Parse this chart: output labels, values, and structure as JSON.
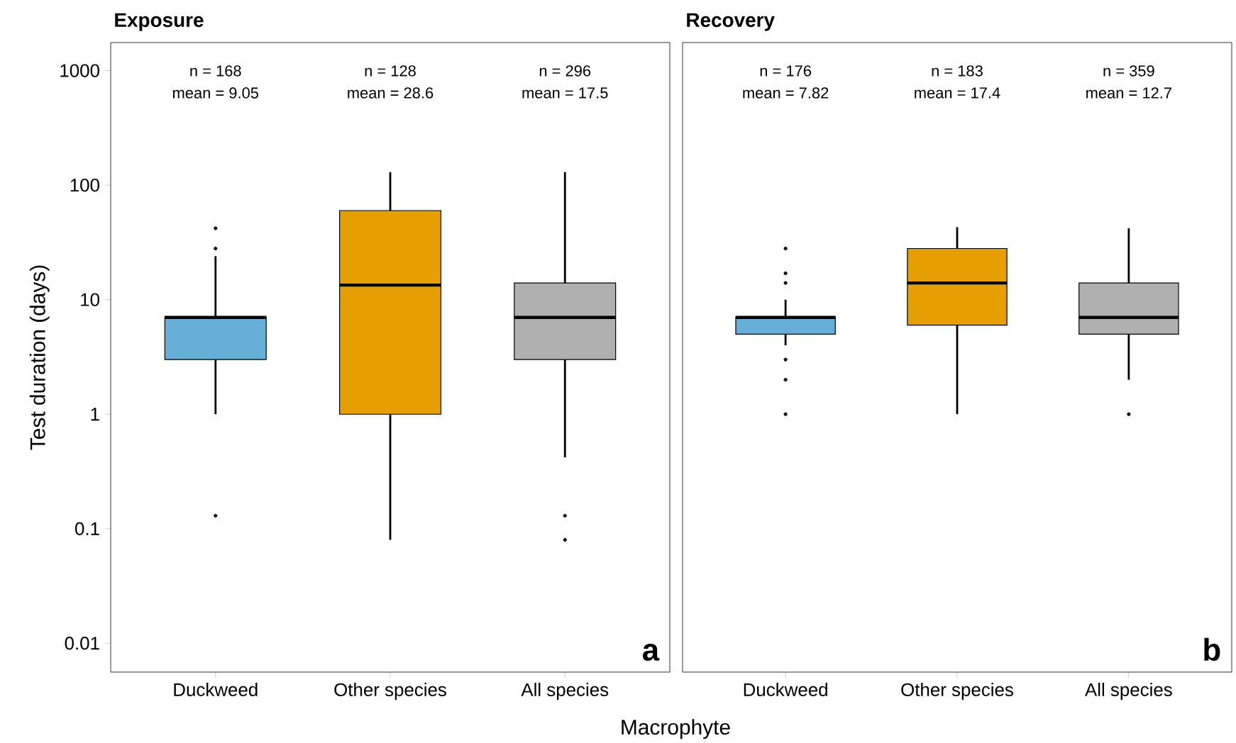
{
  "chart_data": [
    {
      "type": "box",
      "title": "Exposure",
      "ylabel": "Test duration (days)",
      "xlabel": "Macrophyte",
      "log": true,
      "categories": [
        "Duckweed",
        "Other species",
        "All species"
      ],
      "boxes": [
        {
          "low": 1,
          "q1": 3,
          "median": 7,
          "q3": 7.1,
          "high": 24,
          "outliers": [
            42,
            28,
            0.13
          ]
        },
        {
          "low": 0.08,
          "q1": 1,
          "median": 13.4,
          "q3": 60,
          "high": 130
        },
        {
          "low": 0.42,
          "q1": 3,
          "median": 7,
          "q3": 14,
          "high": 130,
          "outliers": [
            0.13,
            0.08
          ]
        }
      ],
      "colors": [
        "#67aed9",
        "#e69f00",
        "#b0b0b0"
      ],
      "ylim": [
        0.0056,
        1760
      ],
      "yticks": [
        0.01,
        0.1,
        1,
        10,
        100,
        1000
      ],
      "annotations": [
        "n = 168",
        "mean = 9.05",
        "n = 128",
        "mean = 28.6",
        "n = 296",
        "mean = 17.5",
        "a"
      ]
    },
    {
      "type": "box",
      "title": "Recovery",
      "log": true,
      "tick_labels": "x",
      "categories": [
        "Duckweed",
        "Other species",
        "All species"
      ],
      "boxes": [
        {
          "low": 4,
          "q1": 5,
          "median": 7,
          "q3": 7.1,
          "high": 10,
          "outliers": [
            28,
            17,
            14,
            3,
            2,
            1
          ]
        },
        {
          "low": 1,
          "q1": 6,
          "median": 14,
          "q3": 28,
          "high": 43
        },
        {
          "low": 2,
          "q1": 5,
          "median": 7,
          "q3": 14,
          "high": 42,
          "outliers": [
            1
          ]
        }
      ],
      "colors": [
        "#67aed9",
        "#e69f00",
        "#b0b0b0"
      ],
      "ylim": [
        0.0056,
        1760
      ],
      "yticks": [
        0.01,
        0.1,
        1,
        10,
        100,
        1000
      ],
      "annotations": [
        "n = 176",
        "mean = 7.82",
        "n = 183",
        "mean = 17.4",
        "n = 359",
        "mean = 12.7",
        "b"
      ]
    }
  ]
}
